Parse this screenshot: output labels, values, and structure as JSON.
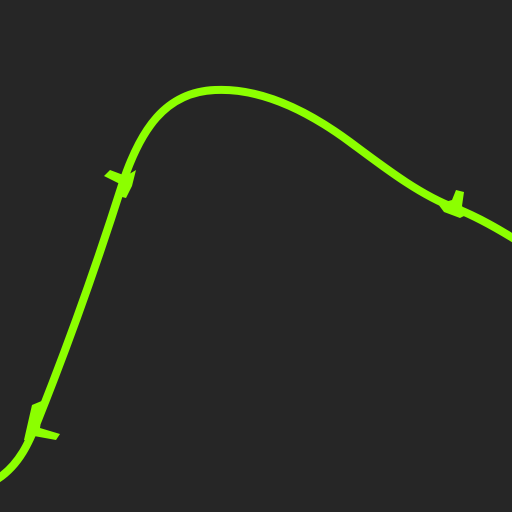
{
  "canvas": {
    "background_color": "#262626"
  },
  "curve": {
    "stroke_color": "#8cff00",
    "marker_color": "#8cff00",
    "marker_count": 3
  }
}
